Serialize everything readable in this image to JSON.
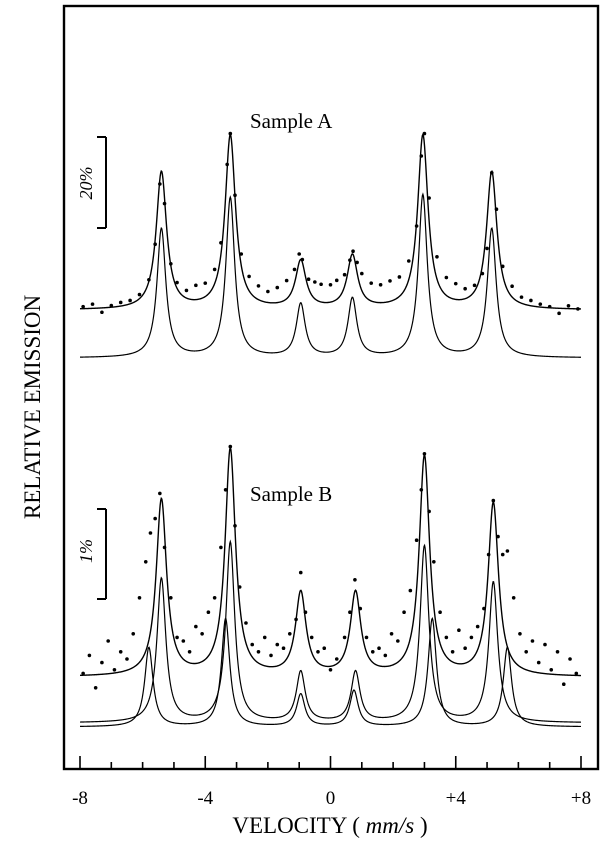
{
  "chart_data": {
    "type": "scatter",
    "xlabel_prefix": "VELOCITY ( ",
    "xlabel_unit": "mm/s",
    "xlabel_suffix": " )",
    "ylabel": "RELATIVE EMISSION",
    "xlim": [
      -8,
      8
    ],
    "xticks": [
      -8,
      -4,
      0,
      4,
      8
    ],
    "xtick_labels": [
      "-8",
      "-4",
      "0",
      "+4",
      "+8"
    ],
    "grid": false,
    "panels": [
      {
        "name": "Sample A",
        "scale_bar_label": "20%",
        "scale_bar_value": 20,
        "components": [
          {
            "sites": [
              {
                "positions": [
                  -5.4,
                  -3.2,
                  -0.95,
                  0.7,
                  2.95,
                  5.15
                ],
                "heights": [
                  46,
                  57,
                  19,
                  21,
                  58,
                  46
                ],
                "gamma": 0.17
              }
            ]
          }
        ],
        "fit_peak_heights": [
          49,
          62,
          17,
          19,
          62,
          49
        ],
        "data_points": [
          {
            "x": -7.9,
            "y": 1.2
          },
          {
            "x": -7.6,
            "y": 2.1
          },
          {
            "x": -7.3,
            "y": -0.8
          },
          {
            "x": -7.0,
            "y": 1.6
          },
          {
            "x": -6.7,
            "y": 2.7
          },
          {
            "x": -6.4,
            "y": 3.4
          },
          {
            "x": -6.1,
            "y": 5.5
          },
          {
            "x": -5.8,
            "y": 10.8
          },
          {
            "x": -5.6,
            "y": 23.5
          },
          {
            "x": -5.45,
            "y": 45.0
          },
          {
            "x": -5.3,
            "y": 38.0
          },
          {
            "x": -5.1,
            "y": 16.5
          },
          {
            "x": -4.9,
            "y": 9.8
          },
          {
            "x": -4.6,
            "y": 7.0
          },
          {
            "x": -4.3,
            "y": 8.8
          },
          {
            "x": -4.0,
            "y": 9.6
          },
          {
            "x": -3.7,
            "y": 14.5
          },
          {
            "x": -3.5,
            "y": 24.0
          },
          {
            "x": -3.3,
            "y": 52.0
          },
          {
            "x": -3.2,
            "y": 63.0
          },
          {
            "x": -3.05,
            "y": 41.0
          },
          {
            "x": -2.85,
            "y": 20.0
          },
          {
            "x": -2.6,
            "y": 12.0
          },
          {
            "x": -2.3,
            "y": 8.6
          },
          {
            "x": -2.0,
            "y": 6.6
          },
          {
            "x": -1.7,
            "y": 8.0
          },
          {
            "x": -1.4,
            "y": 10.5
          },
          {
            "x": -1.15,
            "y": 14.5
          },
          {
            "x": -1.0,
            "y": 20.0
          },
          {
            "x": -0.9,
            "y": 18.0
          },
          {
            "x": -0.7,
            "y": 11.0
          },
          {
            "x": -0.5,
            "y": 10.0
          },
          {
            "x": -0.3,
            "y": 9.2
          },
          {
            "x": 0.0,
            "y": 9.0
          },
          {
            "x": 0.2,
            "y": 10.6
          },
          {
            "x": 0.45,
            "y": 12.6
          },
          {
            "x": 0.62,
            "y": 17.8
          },
          {
            "x": 0.72,
            "y": 21.0
          },
          {
            "x": 0.85,
            "y": 17.0
          },
          {
            "x": 1.0,
            "y": 13.0
          },
          {
            "x": 1.3,
            "y": 9.6
          },
          {
            "x": 1.6,
            "y": 9.0
          },
          {
            "x": 1.9,
            "y": 10.4
          },
          {
            "x": 2.2,
            "y": 11.8
          },
          {
            "x": 2.5,
            "y": 17.5
          },
          {
            "x": 2.75,
            "y": 30.0
          },
          {
            "x": 2.9,
            "y": 55.0
          },
          {
            "x": 3.0,
            "y": 63.0
          },
          {
            "x": 3.15,
            "y": 40.0
          },
          {
            "x": 3.4,
            "y": 19.0
          },
          {
            "x": 3.7,
            "y": 11.6
          },
          {
            "x": 4.0,
            "y": 9.4
          },
          {
            "x": 4.3,
            "y": 7.6
          },
          {
            "x": 4.6,
            "y": 8.8
          },
          {
            "x": 4.85,
            "y": 13.0
          },
          {
            "x": 5.0,
            "y": 22.0
          },
          {
            "x": 5.15,
            "y": 49.0
          },
          {
            "x": 5.3,
            "y": 36.0
          },
          {
            "x": 5.5,
            "y": 15.6
          },
          {
            "x": 5.8,
            "y": 8.5
          },
          {
            "x": 6.1,
            "y": 4.6
          },
          {
            "x": 6.4,
            "y": 3.4
          },
          {
            "x": 6.7,
            "y": 2.1
          },
          {
            "x": 7.0,
            "y": 1.2
          },
          {
            "x": 7.3,
            "y": -1.2
          },
          {
            "x": 7.6,
            "y": 1.5
          },
          {
            "x": 7.9,
            "y": 0.4
          }
        ]
      },
      {
        "name": "Sample B",
        "scale_bar_label": "1%",
        "scale_bar_value": 1,
        "components": [
          {
            "sites": [
              {
                "positions": [
                  -5.4,
                  -3.2,
                  -0.95,
                  0.8,
                  3.0,
                  5.2
                ],
                "heights": [
                  2.0,
                  2.5,
                  0.7,
                  0.7,
                  2.45,
                  1.95
                ],
                "gamma": 0.17
              }
            ]
          },
          {
            "sites": [
              {
                "positions": [
                  -5.8,
                  -3.35,
                  -0.95,
                  0.75,
                  3.25,
                  5.65
                ],
                "heights": [
                  1.1,
                  1.5,
                  0.45,
                  0.5,
                  1.5,
                  1.1
                ],
                "gamma": 0.16
              }
            ]
          }
        ],
        "fit_peak_heights": [
          2.45,
          3.15,
          1.15,
          1.15,
          3.05,
          2.4
        ],
        "data_points": [
          {
            "x": -7.9,
            "y": 0.05
          },
          {
            "x": -7.7,
            "y": 0.3
          },
          {
            "x": -7.5,
            "y": -0.15
          },
          {
            "x": -7.3,
            "y": 0.2
          },
          {
            "x": -7.1,
            "y": 0.5
          },
          {
            "x": -6.9,
            "y": 0.1
          },
          {
            "x": -6.7,
            "y": 0.35
          },
          {
            "x": -6.5,
            "y": 0.25
          },
          {
            "x": -6.3,
            "y": 0.6
          },
          {
            "x": -6.1,
            "y": 1.1
          },
          {
            "x": -5.9,
            "y": 1.6
          },
          {
            "x": -5.75,
            "y": 2.0
          },
          {
            "x": -5.6,
            "y": 2.2
          },
          {
            "x": -5.45,
            "y": 2.55
          },
          {
            "x": -5.3,
            "y": 1.8
          },
          {
            "x": -5.1,
            "y": 1.1
          },
          {
            "x": -4.9,
            "y": 0.55
          },
          {
            "x": -4.7,
            "y": 0.5
          },
          {
            "x": -4.5,
            "y": 0.35
          },
          {
            "x": -4.3,
            "y": 0.7
          },
          {
            "x": -4.1,
            "y": 0.6
          },
          {
            "x": -3.9,
            "y": 0.9
          },
          {
            "x": -3.7,
            "y": 1.1
          },
          {
            "x": -3.5,
            "y": 1.8
          },
          {
            "x": -3.35,
            "y": 2.6
          },
          {
            "x": -3.2,
            "y": 3.2
          },
          {
            "x": -3.05,
            "y": 2.1
          },
          {
            "x": -2.9,
            "y": 1.25
          },
          {
            "x": -2.7,
            "y": 0.75
          },
          {
            "x": -2.5,
            "y": 0.45
          },
          {
            "x": -2.3,
            "y": 0.35
          },
          {
            "x": -2.1,
            "y": 0.55
          },
          {
            "x": -1.9,
            "y": 0.3
          },
          {
            "x": -1.7,
            "y": 0.45
          },
          {
            "x": -1.5,
            "y": 0.4
          },
          {
            "x": -1.3,
            "y": 0.6
          },
          {
            "x": -1.1,
            "y": 0.8
          },
          {
            "x": -0.95,
            "y": 1.45
          },
          {
            "x": -0.8,
            "y": 0.9
          },
          {
            "x": -0.6,
            "y": 0.55
          },
          {
            "x": -0.4,
            "y": 0.35
          },
          {
            "x": -0.2,
            "y": 0.4
          },
          {
            "x": 0.0,
            "y": 0.1
          },
          {
            "x": 0.2,
            "y": 0.25
          },
          {
            "x": 0.45,
            "y": 0.55
          },
          {
            "x": 0.62,
            "y": 0.9
          },
          {
            "x": 0.78,
            "y": 1.35
          },
          {
            "x": 0.95,
            "y": 0.95
          },
          {
            "x": 1.15,
            "y": 0.55
          },
          {
            "x": 1.35,
            "y": 0.35
          },
          {
            "x": 1.55,
            "y": 0.4
          },
          {
            "x": 1.75,
            "y": 0.3
          },
          {
            "x": 1.95,
            "y": 0.6
          },
          {
            "x": 2.15,
            "y": 0.5
          },
          {
            "x": 2.35,
            "y": 0.9
          },
          {
            "x": 2.55,
            "y": 1.2
          },
          {
            "x": 2.75,
            "y": 1.9
          },
          {
            "x": 2.9,
            "y": 2.6
          },
          {
            "x": 3.0,
            "y": 3.1
          },
          {
            "x": 3.15,
            "y": 2.3
          },
          {
            "x": 3.3,
            "y": 1.6
          },
          {
            "x": 3.5,
            "y": 0.9
          },
          {
            "x": 3.7,
            "y": 0.55
          },
          {
            "x": 3.9,
            "y": 0.35
          },
          {
            "x": 4.1,
            "y": 0.65
          },
          {
            "x": 4.3,
            "y": 0.4
          },
          {
            "x": 4.5,
            "y": 0.55
          },
          {
            "x": 4.7,
            "y": 0.7
          },
          {
            "x": 4.9,
            "y": 0.95
          },
          {
            "x": 5.05,
            "y": 1.7
          },
          {
            "x": 5.2,
            "y": 2.45
          },
          {
            "x": 5.35,
            "y": 1.95
          },
          {
            "x": 5.5,
            "y": 1.7
          },
          {
            "x": 5.65,
            "y": 1.75
          },
          {
            "x": 5.85,
            "y": 1.1
          },
          {
            "x": 6.05,
            "y": 0.6
          },
          {
            "x": 6.25,
            "y": 0.35
          },
          {
            "x": 6.45,
            "y": 0.5
          },
          {
            "x": 6.65,
            "y": 0.2
          },
          {
            "x": 6.85,
            "y": 0.45
          },
          {
            "x": 7.05,
            "y": 0.1
          },
          {
            "x": 7.25,
            "y": 0.35
          },
          {
            "x": 7.45,
            "y": -0.1
          },
          {
            "x": 7.65,
            "y": 0.25
          },
          {
            "x": 7.85,
            "y": 0.05
          }
        ]
      }
    ]
  }
}
